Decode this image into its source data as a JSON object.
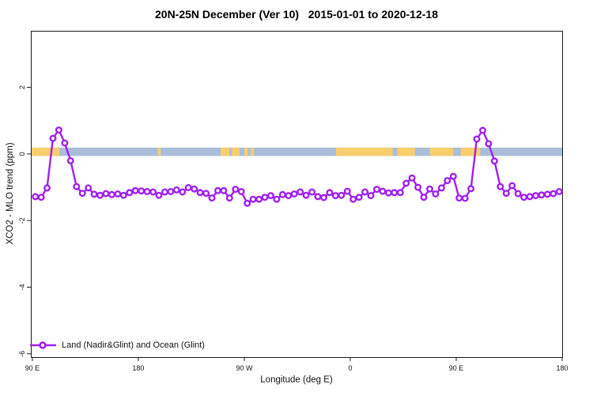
{
  "title": "20N-25N December (Ver 10)   2015-01-01 to 2020-12-18",
  "legend": {
    "label": "Land (Nadir&Glint) and Ocean (Glint)"
  },
  "colors": {
    "series": "#A020F0",
    "marker_fill": "#ffffff",
    "land": "#F8CE6D",
    "ocean": "#A9BDD9",
    "axis": "#1a1a1a"
  },
  "chart_data": {
    "type": "line",
    "title": "20N-25N December (Ver 10)   2015-01-01 to 2020-12-18",
    "xlabel": "Longitude (deg E)",
    "ylabel": "XCO2 - MLO trend (ppm)",
    "xlim": [
      88.7,
      540
    ],
    "ylim": [
      -6.1,
      3.7
    ],
    "grid": false,
    "legend_position": "bottom-left",
    "x_ticks": [
      {
        "value": 90,
        "label": "90 E"
      },
      {
        "value": 180,
        "label": "180"
      },
      {
        "value": 270,
        "label": "90 W"
      },
      {
        "value": 360,
        "label": "0"
      },
      {
        "value": 450,
        "label": "90 E"
      },
      {
        "value": 540,
        "label": "180"
      }
    ],
    "y_ticks": [
      {
        "value": 2,
        "label": "2"
      },
      {
        "value": 0,
        "label": "0"
      },
      {
        "value": -2,
        "label": "-2"
      },
      {
        "value": -4,
        "label": "-4"
      },
      {
        "value": -6,
        "label": "-6"
      }
    ],
    "series": [
      {
        "name": "Land (Nadir&Glint) and Ocean (Glint)",
        "color": "#A020F0",
        "marker": "open-circle",
        "lon_start": 92.5,
        "lon_step": 5,
        "values": [
          -1.28,
          -1.3,
          -1.02,
          0.47,
          0.72,
          0.33,
          -0.2,
          -0.98,
          -1.18,
          -1.02,
          -1.21,
          -1.24,
          -1.19,
          -1.22,
          -1.2,
          -1.24,
          -1.16,
          -1.1,
          -1.11,
          -1.13,
          -1.14,
          -1.24,
          -1.14,
          -1.13,
          -1.08,
          -1.14,
          -1.01,
          -1.05,
          -1.16,
          -1.18,
          -1.32,
          -1.1,
          -1.1,
          -1.32,
          -1.06,
          -1.13,
          -1.48,
          -1.36,
          -1.36,
          -1.3,
          -1.25,
          -1.36,
          -1.22,
          -1.25,
          -1.2,
          -1.14,
          -1.24,
          -1.14,
          -1.28,
          -1.31,
          -1.16,
          -1.25,
          -1.24,
          -1.12,
          -1.36,
          -1.3,
          -1.14,
          -1.25,
          -1.06,
          -1.12,
          -1.17,
          -1.16,
          -1.16,
          -0.88,
          -0.72,
          -1.0,
          -1.3,
          -1.05,
          -1.2,
          -1.02,
          -0.8,
          -0.67,
          -1.32,
          -1.33,
          -1.04,
          0.45,
          0.71,
          0.31,
          -0.21,
          -0.98,
          -1.18,
          -0.95,
          -1.19,
          -1.3,
          -1.28,
          -1.25,
          -1.23,
          -1.21,
          -1.19,
          -1.13
        ]
      }
    ],
    "surface_band": {
      "y_range": [
        -0.06,
        0.19
      ],
      "ocean_color": "#A9BDD9",
      "land_color": "#F8CE6D",
      "land_segments_lon": [
        [
          90,
          113
        ],
        [
          196.5,
          199
        ],
        [
          250,
          257.5
        ],
        [
          259.5,
          266
        ],
        [
          270,
          273
        ],
        [
          275.5,
          278
        ],
        [
          348,
          396
        ],
        [
          400,
          415
        ],
        [
          427.5,
          447.5
        ],
        [
          454,
          470.5
        ]
      ]
    }
  }
}
